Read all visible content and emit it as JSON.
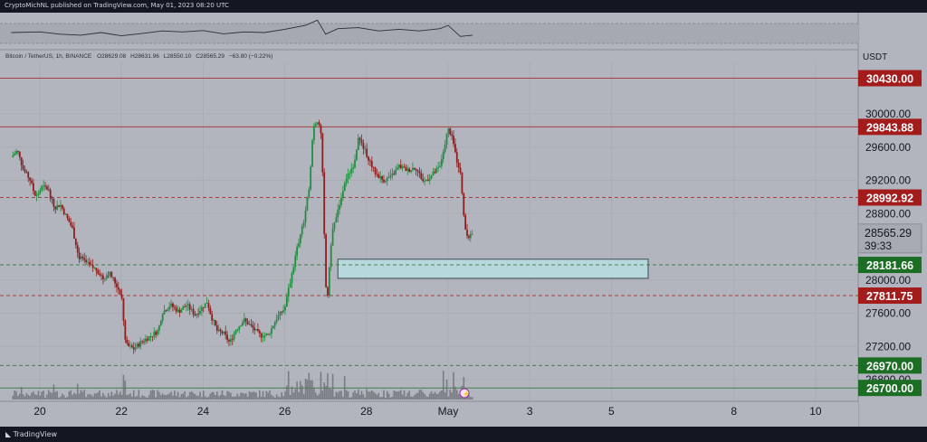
{
  "header": {
    "published": "CryptoMichNL published on TradingView.com, May 01, 2023 08:20 UTC"
  },
  "legend": {
    "symbol": "Bitcoin / TetherUS, 1h, BINANCE",
    "open": "O28629.08",
    "high": "H28631.96",
    "low": "L28550.10",
    "close": "C28565.29",
    "change": "−63.80 (−0.22%)"
  },
  "footer": {
    "brand": "TradingView"
  },
  "colors": {
    "background": "#b2b5be",
    "up": "#26a69a",
    "down": "#ef5350",
    "resistance": "#a31b1b",
    "support": "#1b6e23"
  },
  "chart_data": {
    "type": "candlestick",
    "currency": "USDT",
    "ylim": [
      26500,
      30600
    ],
    "x_range_days": [
      19.3,
      29.7
    ],
    "xticks": [
      {
        "label": "20",
        "day": 20
      },
      {
        "label": "22",
        "day": 22
      },
      {
        "label": "24",
        "day": 24
      },
      {
        "label": "26",
        "day": 26
      },
      {
        "label": "28",
        "day": 28
      },
      {
        "label": "May",
        "day": 30
      },
      {
        "label": "3",
        "day": 32
      },
      {
        "label": "5",
        "day": 34
      },
      {
        "label": "8",
        "day": 37
      },
      {
        "label": "10",
        "day": 39
      }
    ],
    "yticks": [
      30000.0,
      29600.0,
      29200.0,
      28800.0,
      28000.0,
      27600.0,
      27200.0,
      26800.0
    ],
    "levels": [
      {
        "value": 30430.0,
        "label": "30430.00",
        "kind": "resistance",
        "style": "solid"
      },
      {
        "value": 29843.88,
        "label": "29843.88",
        "kind": "resistance",
        "style": "solid"
      },
      {
        "value": 28992.92,
        "label": "28992.92",
        "kind": "resistance",
        "style": "dashed"
      },
      {
        "value": 28181.66,
        "label": "28181.66",
        "kind": "support",
        "style": "dashed"
      },
      {
        "value": 27811.75,
        "label": "27811.75",
        "kind": "resistance",
        "style": "dashed"
      },
      {
        "value": 26970.0,
        "label": "26970.00",
        "kind": "support",
        "style": "dashed"
      },
      {
        "value": 26700.0,
        "label": "26700.00",
        "kind": "support",
        "style": "solid"
      }
    ],
    "current_price": {
      "value": 28565.29,
      "label": "28565.29",
      "countdown": "39:33"
    },
    "zone": {
      "low": 28020,
      "high": 28250,
      "day_start": 27.3,
      "day_end": 34.9
    },
    "price_path": [
      [
        19.3,
        29480
      ],
      [
        19.45,
        29560
      ],
      [
        19.6,
        29320
      ],
      [
        19.75,
        29220
      ],
      [
        19.9,
        28990
      ],
      [
        20.05,
        29120
      ],
      [
        20.2,
        29100
      ],
      [
        20.35,
        28870
      ],
      [
        20.5,
        28910
      ],
      [
        20.65,
        28760
      ],
      [
        20.8,
        28620
      ],
      [
        20.95,
        28280
      ],
      [
        21.1,
        28220
      ],
      [
        21.25,
        28160
      ],
      [
        21.4,
        28120
      ],
      [
        21.55,
        28020
      ],
      [
        21.7,
        28090
      ],
      [
        21.85,
        27960
      ],
      [
        22.0,
        27820
      ],
      [
        22.05,
        27520
      ],
      [
        22.1,
        27220
      ],
      [
        22.3,
        27170
      ],
      [
        22.5,
        27260
      ],
      [
        22.7,
        27320
      ],
      [
        22.9,
        27390
      ],
      [
        23.0,
        27610
      ],
      [
        23.2,
        27700
      ],
      [
        23.4,
        27620
      ],
      [
        23.6,
        27700
      ],
      [
        23.8,
        27580
      ],
      [
        24.0,
        27680
      ],
      [
        24.1,
        27740
      ],
      [
        24.2,
        27560
      ],
      [
        24.35,
        27380
      ],
      [
        24.5,
        27360
      ],
      [
        24.65,
        27240
      ],
      [
        24.8,
        27400
      ],
      [
        25.0,
        27520
      ],
      [
        25.2,
        27430
      ],
      [
        25.4,
        27330
      ],
      [
        25.6,
        27340
      ],
      [
        25.8,
        27540
      ],
      [
        26.0,
        27660
      ],
      [
        26.15,
        28020
      ],
      [
        26.3,
        28380
      ],
      [
        26.5,
        28780
      ],
      [
        26.6,
        29150
      ],
      [
        26.7,
        29860
      ],
      [
        26.8,
        29920
      ],
      [
        26.9,
        29720
      ],
      [
        27.0,
        27930
      ],
      [
        27.05,
        27820
      ],
      [
        27.15,
        28560
      ],
      [
        27.3,
        28850
      ],
      [
        27.5,
        29210
      ],
      [
        27.7,
        29410
      ],
      [
        27.8,
        29720
      ],
      [
        28.0,
        29520
      ],
      [
        28.2,
        29300
      ],
      [
        28.4,
        29200
      ],
      [
        28.6,
        29240
      ],
      [
        28.8,
        29370
      ],
      [
        29.0,
        29320
      ],
      [
        29.2,
        29360
      ],
      [
        29.4,
        29180
      ],
      [
        29.6,
        29260
      ],
      [
        29.8,
        29360
      ],
      [
        29.9,
        29600
      ],
      [
        30.0,
        29820
      ],
      [
        30.1,
        29720
      ],
      [
        30.2,
        29460
      ],
      [
        30.3,
        29320
      ],
      [
        30.4,
        28640
      ],
      [
        30.5,
        28520
      ],
      [
        30.6,
        28565
      ]
    ],
    "rsi_path": [
      [
        19.3,
        50
      ],
      [
        20.0,
        52
      ],
      [
        20.5,
        45
      ],
      [
        21.0,
        42
      ],
      [
        21.5,
        50
      ],
      [
        22.0,
        40
      ],
      [
        22.5,
        47
      ],
      [
        23.0,
        55
      ],
      [
        23.5,
        52
      ],
      [
        24.0,
        56
      ],
      [
        24.5,
        46
      ],
      [
        25.0,
        52
      ],
      [
        25.5,
        50
      ],
      [
        26.0,
        60
      ],
      [
        26.5,
        72
      ],
      [
        26.8,
        88
      ],
      [
        27.0,
        45
      ],
      [
        27.3,
        62
      ],
      [
        27.8,
        65
      ],
      [
        28.3,
        55
      ],
      [
        28.8,
        60
      ],
      [
        29.3,
        55
      ],
      [
        29.8,
        62
      ],
      [
        30.0,
        72
      ],
      [
        30.3,
        38
      ],
      [
        30.6,
        42
      ]
    ]
  }
}
